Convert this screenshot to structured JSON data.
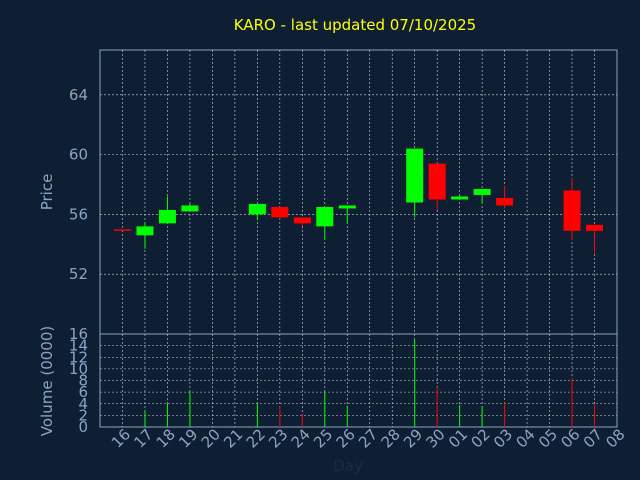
{
  "chart_data": [
    {
      "type": "candlestick",
      "title": "KARO - last updated 07/10/2025",
      "ylabel": "Price",
      "ylim": [
        48,
        67
      ],
      "yticks": [
        52,
        56,
        60,
        64
      ],
      "grid": true,
      "up_color": "#00ff00",
      "down_color": "#ff0000",
      "candles": [
        {
          "x": "16",
          "open": 55.0,
          "high": 55.0,
          "low": 55.0,
          "close": 55.0,
          "dir": "down"
        },
        {
          "x": "17",
          "open": 54.6,
          "high": 55.5,
          "low": 53.7,
          "close": 55.2,
          "dir": "up"
        },
        {
          "x": "18",
          "open": 55.4,
          "high": 57.2,
          "low": 55.4,
          "close": 56.3,
          "dir": "up"
        },
        {
          "x": "19",
          "open": 56.2,
          "high": 56.7,
          "low": 56.2,
          "close": 56.6,
          "dir": "up"
        },
        {
          "x": "22",
          "open": 56.0,
          "high": 56.7,
          "low": 55.6,
          "close": 56.7,
          "dir": "up"
        },
        {
          "x": "23",
          "open": 56.5,
          "high": 56.5,
          "low": 55.7,
          "close": 55.8,
          "dir": "down"
        },
        {
          "x": "24",
          "open": 55.8,
          "high": 55.8,
          "low": 55.2,
          "close": 55.4,
          "dir": "down"
        },
        {
          "x": "25",
          "open": 55.2,
          "high": 56.5,
          "low": 54.3,
          "close": 56.5,
          "dir": "up"
        },
        {
          "x": "26",
          "open": 56.4,
          "high": 56.6,
          "low": 55.4,
          "close": 56.6,
          "dir": "up"
        },
        {
          "x": "29",
          "open": 56.8,
          "high": 60.4,
          "low": 55.8,
          "close": 60.4,
          "dir": "up"
        },
        {
          "x": "30",
          "open": 59.4,
          "high": 59.4,
          "low": 56.3,
          "close": 57.0,
          "dir": "down"
        },
        {
          "x": "01",
          "open": 57.0,
          "high": 57.3,
          "low": 57.0,
          "close": 57.2,
          "dir": "up"
        },
        {
          "x": "02",
          "open": 57.3,
          "high": 57.7,
          "low": 56.8,
          "close": 57.7,
          "dir": "up"
        },
        {
          "x": "03",
          "open": 57.1,
          "high": 57.9,
          "low": 56.4,
          "close": 56.6,
          "dir": "down"
        },
        {
          "x": "06",
          "open": 57.6,
          "high": 58.4,
          "low": 54.3,
          "close": 54.9,
          "dir": "down"
        },
        {
          "x": "07",
          "open": 55.3,
          "high": 55.3,
          "low": 53.4,
          "close": 54.9,
          "dir": "down"
        }
      ]
    },
    {
      "type": "bar",
      "ylabel": "Volume (0000)",
      "xlabel": "Day",
      "ylim": [
        0,
        16
      ],
      "yticks": [
        0,
        2,
        4,
        6,
        8,
        10,
        12,
        14,
        16
      ],
      "grid": true,
      "categories": [
        "16",
        "17",
        "18",
        "19",
        "20",
        "21",
        "22",
        "23",
        "24",
        "25",
        "26",
        "27",
        "28",
        "29",
        "30",
        "01",
        "02",
        "03",
        "04",
        "05",
        "06",
        "07",
        "08"
      ],
      "values": [
        0,
        2.8,
        4.0,
        6.2,
        0,
        0,
        4.2,
        3.5,
        2.2,
        6.0,
        3.7,
        0,
        0,
        15.0,
        6.8,
        3.8,
        3.6,
        4.2,
        0,
        0,
        8.4,
        3.8,
        0
      ],
      "colors": [
        "#00ff00",
        "#00ff00",
        "#00ff00",
        "#00ff00",
        "#00ff00",
        "#00ff00",
        "#00ff00",
        "#ff0000",
        "#ff0000",
        "#00ff00",
        "#00ff00",
        "#00ff00",
        "#00ff00",
        "#00ff00",
        "#ff0000",
        "#00ff00",
        "#00ff00",
        "#ff0000",
        "#00ff00",
        "#00ff00",
        "#ff0000",
        "#ff0000",
        "#00ff00"
      ]
    }
  ]
}
